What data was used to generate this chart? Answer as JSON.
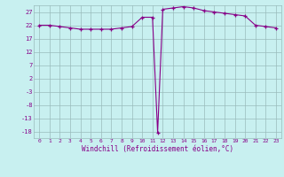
{
  "x": [
    0,
    1,
    2,
    3,
    4,
    5,
    6,
    7,
    8,
    9,
    10,
    11,
    11.5,
    12,
    13,
    14,
    15,
    16,
    17,
    18,
    19,
    20,
    21,
    22,
    23
  ],
  "y": [
    22,
    22,
    21.5,
    21,
    20.5,
    20.5,
    20.5,
    20.5,
    21,
    21.5,
    25,
    25,
    -18.5,
    28,
    28.5,
    29,
    28.5,
    27.5,
    27,
    26.5,
    26,
    25.5,
    22,
    21.5,
    21
  ],
  "line_color": "#880088",
  "marker": "+",
  "marker_size": 3,
  "bg_color": "#c8f0f0",
  "grid_color": "#99bbbb",
  "xlabel": "Windchill (Refroidissement éolien,°C)",
  "yticks": [
    27,
    22,
    17,
    12,
    7,
    2,
    -3,
    -8,
    -13,
    -18
  ],
  "xlim": [
    -0.5,
    23.5
  ],
  "ylim": [
    -20.5,
    29.5
  ],
  "xticks": [
    0,
    1,
    2,
    3,
    4,
    5,
    6,
    7,
    8,
    9,
    10,
    11,
    12,
    13,
    14,
    15,
    16,
    17,
    18,
    19,
    20,
    21,
    22,
    23
  ]
}
